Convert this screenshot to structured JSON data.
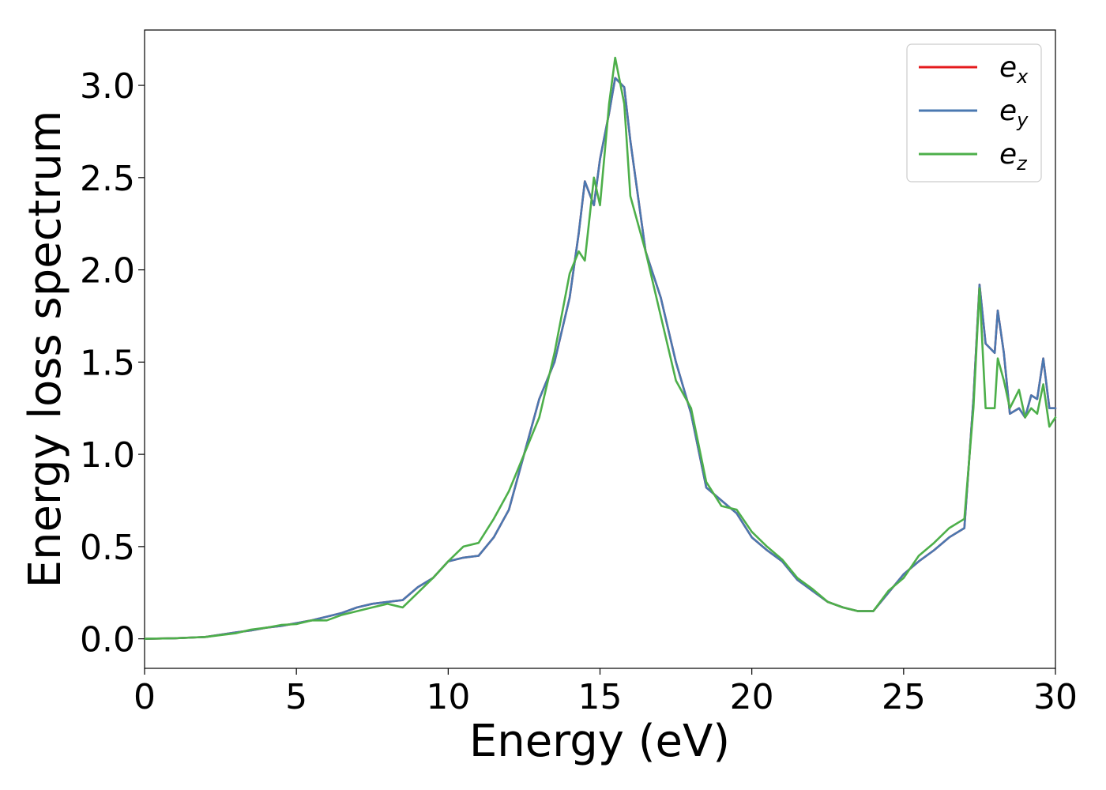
{
  "chart_data": {
    "type": "line",
    "title": "",
    "xlabel": "Energy (eV)",
    "ylabel": "Energy loss spectrum",
    "xlim": [
      0,
      30
    ],
    "ylim": [
      -0.16,
      3.3
    ],
    "xticks": [
      0,
      5,
      10,
      15,
      20,
      25,
      30
    ],
    "xtick_labels": [
      "0",
      "5",
      "10",
      "15",
      "20",
      "25",
      "30"
    ],
    "yticks": [
      0.0,
      0.5,
      1.0,
      1.5,
      2.0,
      2.5,
      3.0
    ],
    "ytick_labels": [
      "0.0",
      "0.5",
      "1.0",
      "1.5",
      "2.0",
      "2.5",
      "3.0"
    ],
    "grid": false,
    "legend_position": "top-right",
    "series": [
      {
        "name": "e",
        "sub": "x",
        "color": "#e41a1c",
        "x": [
          0,
          1,
          2,
          3,
          3.5,
          4,
          4.5,
          5,
          5.5,
          6,
          6.5,
          7,
          7.5,
          8,
          8.5,
          9,
          9.5,
          10,
          10.5,
          11,
          11.5,
          12,
          12.5,
          13,
          13.5,
          14,
          14.3,
          14.5,
          14.8,
          15,
          15.3,
          15.5,
          15.8,
          16,
          16.5,
          17,
          17.5,
          18,
          18.5,
          19,
          19.5,
          20,
          20.5,
          21,
          21.5,
          22,
          22.5,
          23,
          23.5,
          24,
          24.5,
          25,
          25.5,
          26,
          26.5,
          27,
          27.3,
          27.5,
          27.7,
          28,
          28.1,
          28.3,
          28.5,
          28.8,
          29,
          29.2,
          29.4,
          29.6,
          29.8,
          30
        ],
        "y": [
          0,
          0.003,
          0.01,
          0.035,
          0.045,
          0.06,
          0.07,
          0.085,
          0.1,
          0.12,
          0.14,
          0.17,
          0.19,
          0.2,
          0.21,
          0.28,
          0.33,
          0.42,
          0.44,
          0.45,
          0.55,
          0.7,
          1.0,
          1.3,
          1.5,
          1.85,
          2.2,
          2.48,
          2.35,
          2.6,
          2.85,
          3.04,
          2.99,
          2.7,
          2.1,
          1.85,
          1.5,
          1.22,
          0.82,
          0.75,
          0.68,
          0.55,
          0.48,
          0.42,
          0.32,
          0.26,
          0.2,
          0.17,
          0.15,
          0.15,
          0.25,
          0.35,
          0.42,
          0.48,
          0.55,
          0.6,
          1.3,
          1.92,
          1.6,
          1.55,
          1.78,
          1.55,
          1.22,
          1.25,
          1.2,
          1.32,
          1.3,
          1.52,
          1.25,
          1.25
        ]
      },
      {
        "name": "e",
        "sub": "y",
        "color": "#4a78b0",
        "x": [
          0,
          1,
          2,
          3,
          3.5,
          4,
          4.5,
          5,
          5.5,
          6,
          6.5,
          7,
          7.5,
          8,
          8.5,
          9,
          9.5,
          10,
          10.5,
          11,
          11.5,
          12,
          12.5,
          13,
          13.5,
          14,
          14.3,
          14.5,
          14.8,
          15,
          15.3,
          15.5,
          15.8,
          16,
          16.5,
          17,
          17.5,
          18,
          18.5,
          19,
          19.5,
          20,
          20.5,
          21,
          21.5,
          22,
          22.5,
          23,
          23.5,
          24,
          24.5,
          25,
          25.5,
          26,
          26.5,
          27,
          27.3,
          27.5,
          27.7,
          28,
          28.1,
          28.3,
          28.5,
          28.8,
          29,
          29.2,
          29.4,
          29.6,
          29.8,
          30
        ],
        "y": [
          0,
          0.003,
          0.01,
          0.035,
          0.045,
          0.06,
          0.07,
          0.085,
          0.1,
          0.12,
          0.14,
          0.17,
          0.19,
          0.2,
          0.21,
          0.28,
          0.33,
          0.42,
          0.44,
          0.45,
          0.55,
          0.7,
          1.0,
          1.3,
          1.5,
          1.85,
          2.2,
          2.48,
          2.35,
          2.6,
          2.85,
          3.04,
          2.99,
          2.7,
          2.1,
          1.85,
          1.5,
          1.22,
          0.82,
          0.75,
          0.68,
          0.55,
          0.48,
          0.42,
          0.32,
          0.26,
          0.2,
          0.17,
          0.15,
          0.15,
          0.25,
          0.35,
          0.42,
          0.48,
          0.55,
          0.6,
          1.3,
          1.92,
          1.6,
          1.55,
          1.78,
          1.55,
          1.22,
          1.25,
          1.2,
          1.32,
          1.3,
          1.52,
          1.25,
          1.25
        ]
      },
      {
        "name": "e",
        "sub": "z",
        "color": "#4daf4a",
        "x": [
          0,
          1,
          2,
          3,
          3.5,
          4,
          4.5,
          5,
          5.5,
          6,
          6.5,
          7,
          7.5,
          8,
          8.5,
          9,
          9.5,
          10,
          10.5,
          11,
          11.5,
          12,
          12.5,
          13,
          13.5,
          14,
          14.3,
          14.5,
          14.8,
          15,
          15.3,
          15.5,
          15.8,
          16,
          16.5,
          17,
          17.5,
          18,
          18.5,
          19,
          19.5,
          20,
          20.5,
          21,
          21.5,
          22,
          22.5,
          23,
          23.5,
          24,
          24.5,
          25,
          25.5,
          26,
          26.5,
          27,
          27.3,
          27.5,
          27.7,
          28,
          28.1,
          28.3,
          28.5,
          28.8,
          29,
          29.2,
          29.4,
          29.6,
          29.8,
          30
        ],
        "y": [
          0,
          0.003,
          0.01,
          0.03,
          0.05,
          0.06,
          0.075,
          0.08,
          0.1,
          0.1,
          0.13,
          0.15,
          0.17,
          0.19,
          0.17,
          0.25,
          0.33,
          0.42,
          0.5,
          0.52,
          0.65,
          0.8,
          1.0,
          1.2,
          1.55,
          1.98,
          2.1,
          2.05,
          2.5,
          2.35,
          2.9,
          3.15,
          2.9,
          2.4,
          2.1,
          1.75,
          1.4,
          1.25,
          0.85,
          0.72,
          0.7,
          0.58,
          0.5,
          0.43,
          0.33,
          0.27,
          0.2,
          0.17,
          0.15,
          0.15,
          0.26,
          0.33,
          0.45,
          0.52,
          0.6,
          0.65,
          1.25,
          1.9,
          1.25,
          1.25,
          1.52,
          1.4,
          1.25,
          1.35,
          1.2,
          1.25,
          1.22,
          1.38,
          1.15,
          1.2
        ]
      }
    ]
  }
}
